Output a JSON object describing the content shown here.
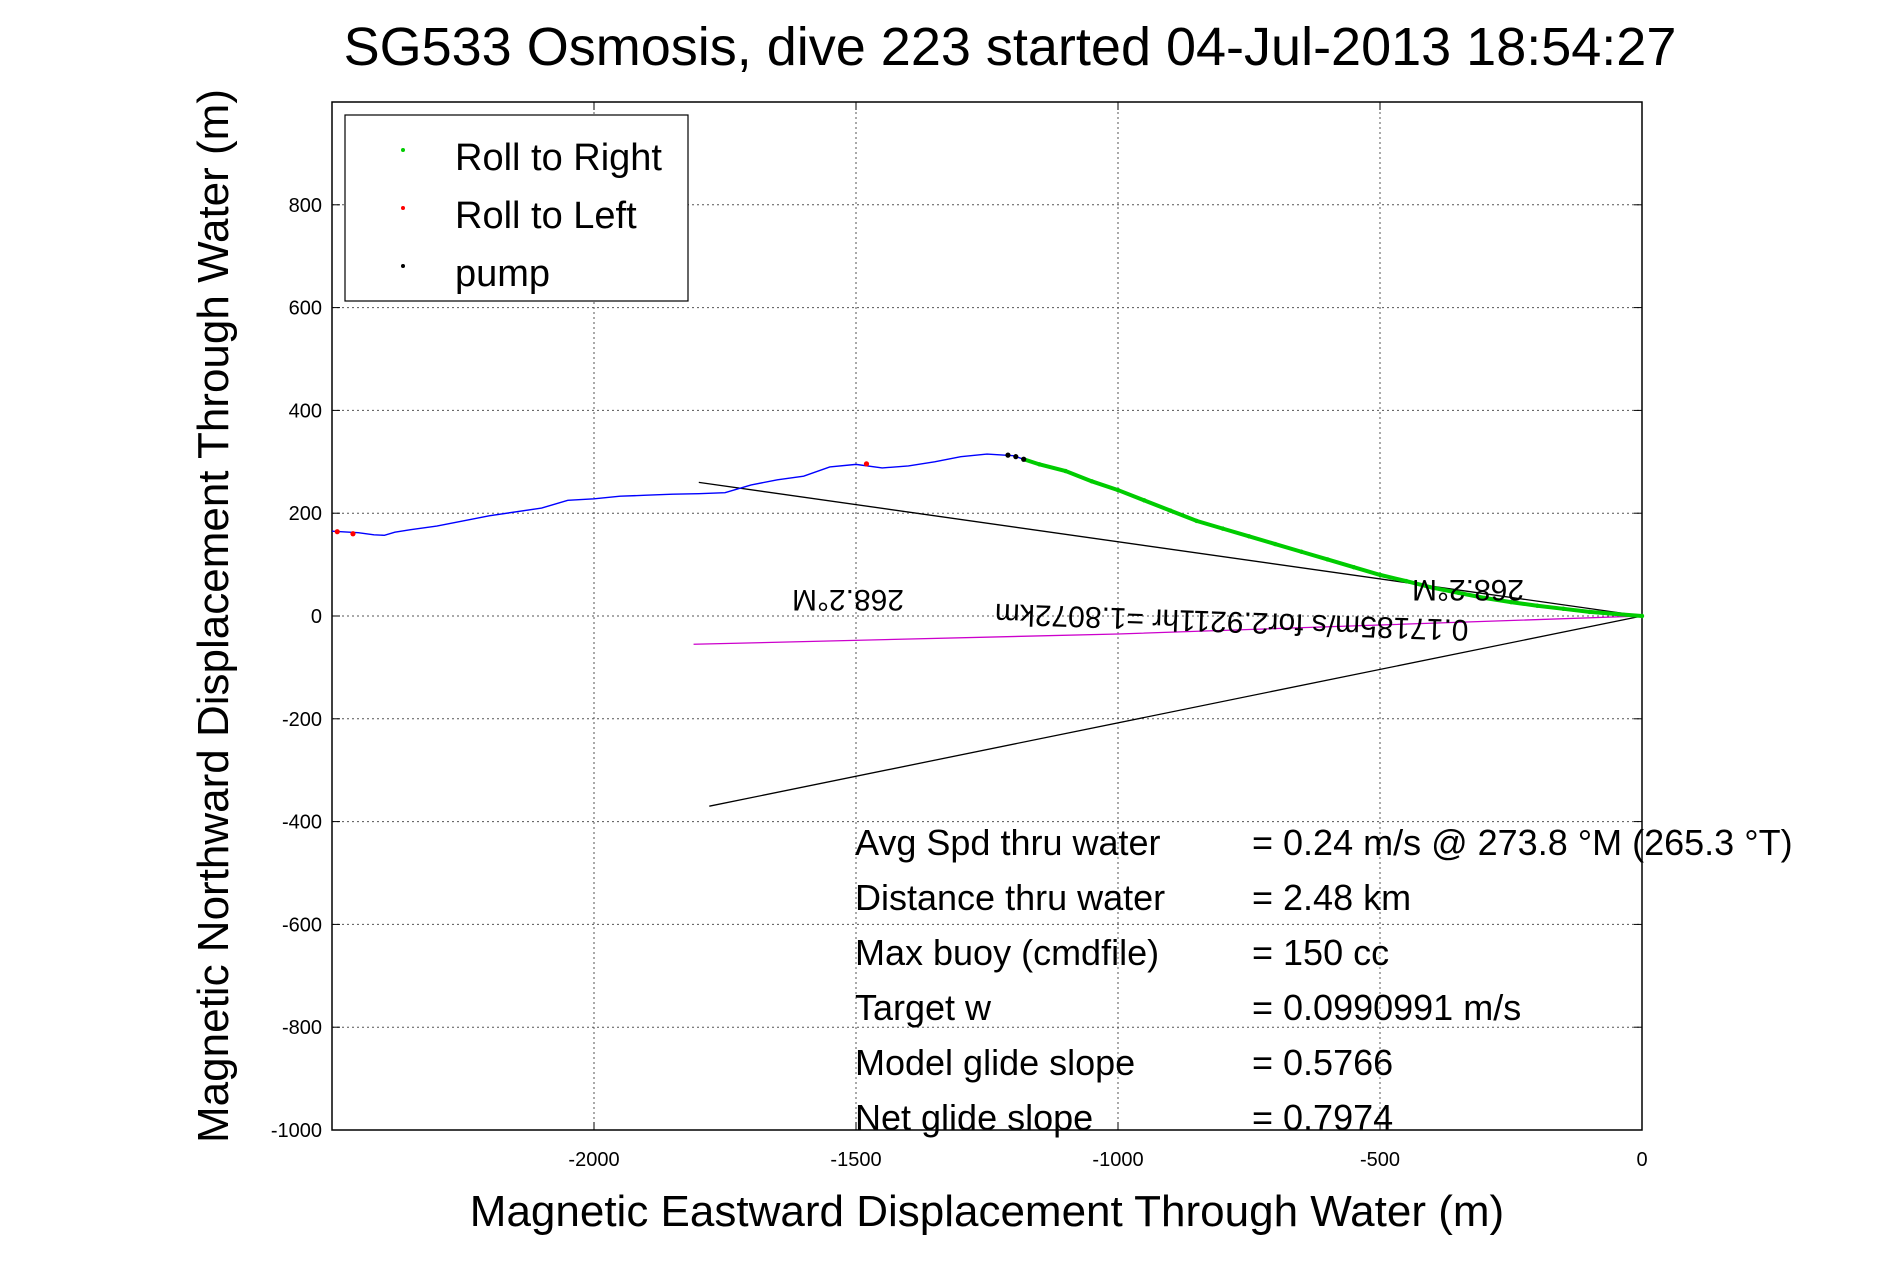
{
  "chart_data": {
    "type": "line",
    "title": "SG533 Osmosis, dive 223 started 04-Jul-2013 18:54:27",
    "xlabel": "Magnetic Eastward Displacement Through Water (m)",
    "ylabel": "Magnetic Northward Displacement Through Water (m)",
    "xlim": [
      -2500,
      0
    ],
    "ylim": [
      -1000,
      1000
    ],
    "xticks": [
      -2000,
      -1500,
      -1000,
      -500,
      0
    ],
    "yticks": [
      -1000,
      -800,
      -600,
      -400,
      -200,
      0,
      200,
      400,
      600,
      800
    ],
    "grid": true,
    "legend_position": "top-left",
    "legend": [
      {
        "name": "Roll to Right",
        "color": "#00cc00"
      },
      {
        "name": "Roll to Left",
        "color": "#ff0000"
      },
      {
        "name": "pump",
        "color": "#000000"
      }
    ],
    "series": [
      {
        "name": "track",
        "color": "#0000ff",
        "x": [
          -2500,
          -2450,
          -2420,
          -2400,
          -2380,
          -2350,
          -2300,
          -2250,
          -2200,
          -2100,
          -2050,
          -2000,
          -1950,
          -1900,
          -1850,
          -1800,
          -1750,
          -1700,
          -1650,
          -1600,
          -1550,
          -1500,
          -1450,
          -1400,
          -1350,
          -1300,
          -1250,
          -1200,
          -1180
        ],
        "y": [
          165,
          162,
          158,
          157,
          163,
          168,
          175,
          185,
          195,
          210,
          225,
          228,
          233,
          235,
          237,
          238,
          240,
          255,
          265,
          272,
          290,
          295,
          288,
          292,
          300,
          310,
          315,
          312,
          305
        ]
      },
      {
        "name": "Roll to Right",
        "color": "#00cc00",
        "x": [
          -1180,
          -1150,
          -1100,
          -1050,
          -1000,
          -950,
          -900,
          -850,
          -800,
          -750,
          -700,
          -650,
          -600,
          -550,
          -500,
          -450,
          -400,
          -350,
          -300,
          -250,
          -200,
          -150,
          -100,
          -50,
          0
        ],
        "y": [
          305,
          295,
          282,
          262,
          245,
          225,
          205,
          185,
          170,
          155,
          140,
          125,
          110,
          95,
          80,
          68,
          55,
          45,
          35,
          27,
          20,
          14,
          8,
          4,
          0
        ]
      },
      {
        "name": "Roll to Left",
        "color": "#ff0000",
        "x": [
          -2490,
          -2460,
          -1480
        ],
        "y": [
          164,
          160,
          296
        ]
      },
      {
        "name": "pump",
        "color": "#000000",
        "x": [
          -1210,
          -1195,
          -1180
        ],
        "y": [
          313,
          310,
          305
        ]
      }
    ],
    "reference_lines": [
      {
        "name": "bracket-upper",
        "color": "#000000",
        "x": [
          -1800,
          0
        ],
        "y": [
          260,
          0
        ]
      },
      {
        "name": "bracket-lower",
        "color": "#000000",
        "x": [
          -1780,
          0
        ],
        "y": [
          -370,
          0
        ]
      },
      {
        "name": "current-vector",
        "color": "#cc00cc",
        "x": [
          -1810,
          -1000,
          0
        ],
        "y": [
          -55,
          -35,
          0
        ]
      }
    ],
    "annotations": {
      "heading_far": "268.2°M",
      "heading_near": "268.2°M",
      "current_summary": "0.17185m/s for2.9211hr =1.8072km"
    },
    "stats": [
      {
        "label": "Avg Spd thru water",
        "value": "=  0.24 m/s @ 273.8 °M (265.3 °T)"
      },
      {
        "label": "Distance thru water",
        "value": "=  2.48 km"
      },
      {
        "label": "Max buoy (cmdfile)",
        "value": "= 150 cc"
      },
      {
        "label": "Target w",
        "value": "= 0.0990991 m/s"
      },
      {
        "label": "Model glide slope",
        "value": "= 0.5766"
      },
      {
        "label": "Net glide slope",
        "value": "= 0.7974"
      }
    ]
  }
}
